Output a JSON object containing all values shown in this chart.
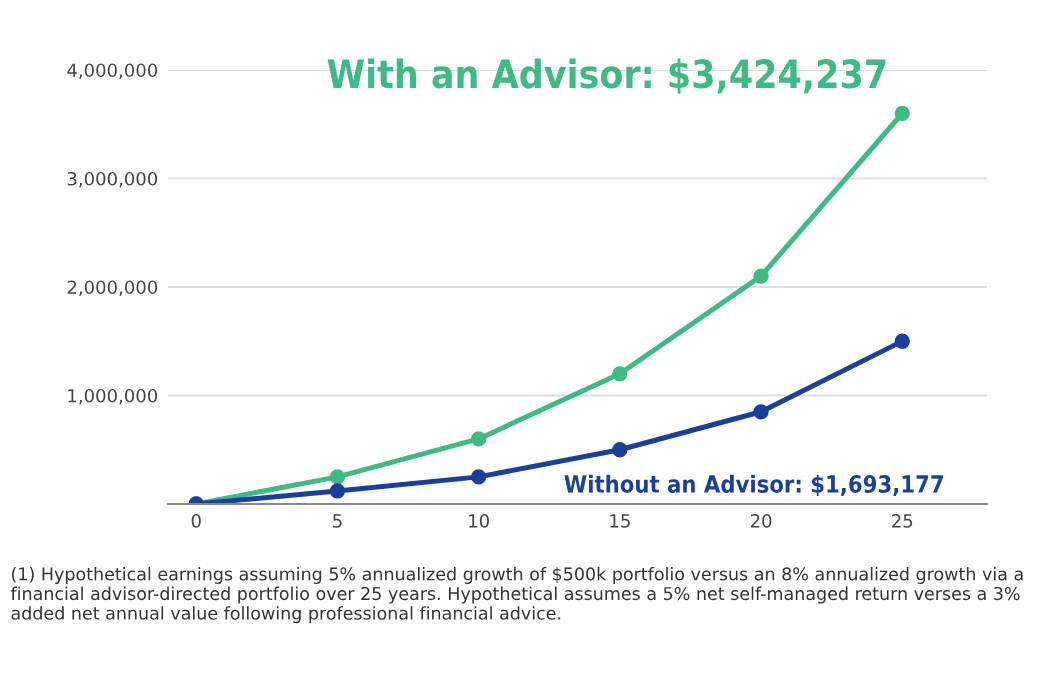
{
  "chart_data": {
    "type": "line",
    "x": [
      0,
      5,
      10,
      15,
      20,
      25
    ],
    "series": [
      {
        "name": "With an Advisor: $3,424,237",
        "color": "#3dbb82",
        "values": [
          0,
          250000,
          600000,
          1200000,
          2100000,
          3600000
        ]
      },
      {
        "name": "Without an Advisor: $1,693,177",
        "color": "#1a3f9e",
        "values": [
          0,
          120000,
          250000,
          500000,
          850000,
          1500000
        ]
      }
    ],
    "xlim": [
      -1,
      28
    ],
    "xticks": [
      0,
      5,
      10,
      15,
      20,
      25
    ],
    "ylim": [
      0,
      4000000
    ],
    "yticks": [
      {
        "value": 1000000,
        "label": "1,000,000"
      },
      {
        "value": 2000000,
        "label": "2,000,000"
      },
      {
        "value": 3000000,
        "label": "3,000,000"
      },
      {
        "value": 4000000,
        "label": "4,000,000"
      }
    ],
    "grid": "y",
    "marker": "circle",
    "line_style": "solid",
    "legend": false,
    "annotations": [
      "(1) Hypothetical earnings assuming 5% annualized growth of $500k portfolio versus an 8% annualized growth via a financial advisor-directed portfolio over 25 years. Hypothetical assumes a 5% net self-managed return verses a 3% added net annual value following professional financial advice."
    ]
  }
}
